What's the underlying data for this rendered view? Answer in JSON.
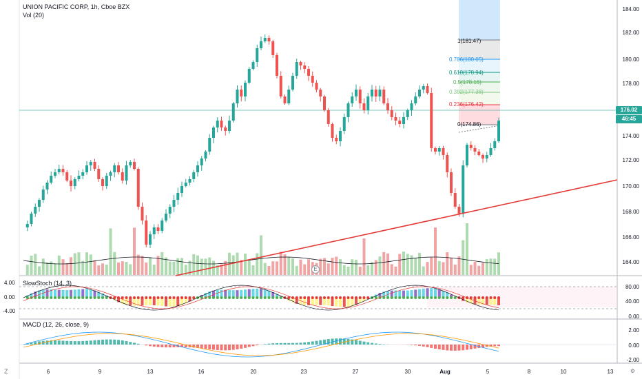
{
  "header": {
    "symbol_line": "UNION PACIFIC CORP, 1h, Cboe BZX",
    "volume_label": "Vol (20)"
  },
  "stoch": {
    "label": "SlowStoch (14, 3)"
  },
  "macd": {
    "label": "MACD (12, 26, close, 9)"
  },
  "left_toolbar": {
    "items": [
      "Z"
    ]
  },
  "price_axis": {
    "labels": [
      "184.00",
      "182.00",
      "180.00",
      "178.00",
      "176.00",
      "174.00",
      "172.00",
      "170.00",
      "168.00",
      "166.00",
      "164.00"
    ],
    "current_price": "176.02",
    "countdown": "46:45"
  },
  "stoch_axis": {
    "right_labels": [
      "80.00",
      "40.00",
      "0.00"
    ],
    "left_labels": [
      "4.00",
      "0.00",
      "-4.00"
    ]
  },
  "macd_axis": {
    "labels": [
      "2.00",
      "0.00",
      "-2.00"
    ]
  },
  "time_axis": {
    "labels": [
      "6",
      "9",
      "13",
      "16",
      "20",
      "23",
      "27",
      "30",
      "Aug",
      "5",
      "8",
      "10",
      "13"
    ]
  },
  "fib_levels": [
    {
      "label": "1(181.47)",
      "color": "#787b86"
    },
    {
      "label": "0.786(180.05)",
      "color": "#2196f3"
    },
    {
      "label": "0.618(178.94)",
      "color": "#089981"
    },
    {
      "label": "0.5(178.16)",
      "color": "#4caf50"
    },
    {
      "label": "0.382(177.38)",
      "color": "#81c784"
    },
    {
      "label": "0.236(176.42)",
      "color": "#f23645"
    },
    {
      "label": "0(174.86)",
      "color": "#787b86"
    }
  ],
  "earnings_marker": "E",
  "corner_right": "⚙",
  "colors": {
    "up": "#26a69a",
    "down": "#ef5350",
    "trendline": "#e53935",
    "price_tag": "#26a69a",
    "countdown_tag": "#26a69a"
  }
}
